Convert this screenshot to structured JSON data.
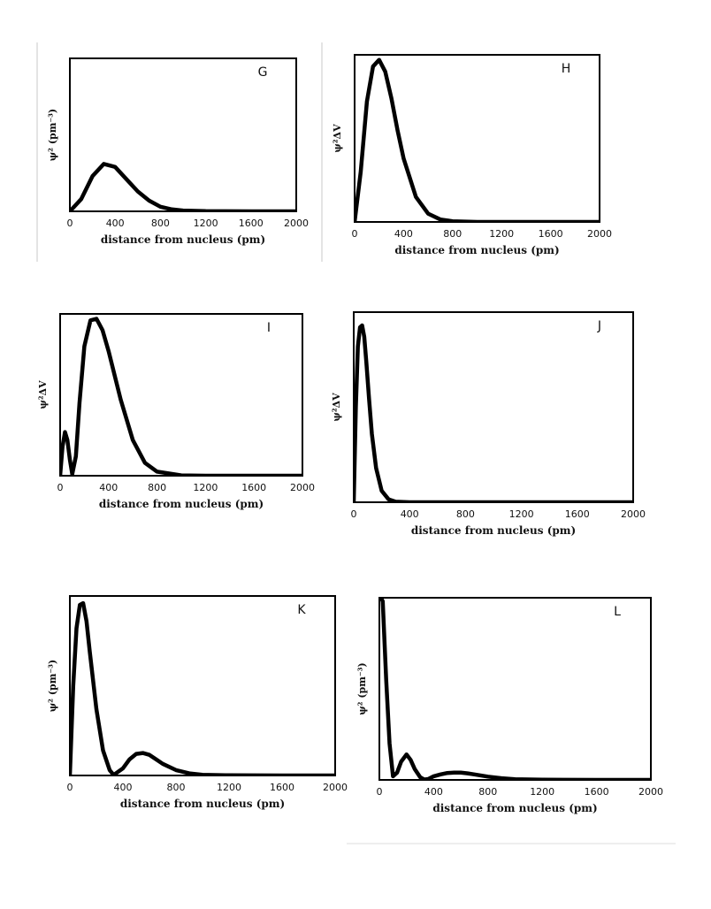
{
  "chart_data": [
    {
      "type": "line",
      "panel_label": "G",
      "xlabel": "distance from nucleus (pm)",
      "ylabel": "ψ² (pm⁻³)",
      "xlim": [
        0,
        2000
      ],
      "xticks": [
        "0",
        "400",
        "800",
        "1200",
        "1600",
        "2000"
      ],
      "ylim": [
        0,
        1
      ],
      "grid": false,
      "series": [
        {
          "x": [
            0,
            100,
            200,
            300,
            400,
            500,
            600,
            700,
            800,
            900,
            1000,
            1200,
            1600,
            2000
          ],
          "y": [
            0,
            0.08,
            0.23,
            0.31,
            0.29,
            0.21,
            0.13,
            0.07,
            0.03,
            0.013,
            0.005,
            0.001,
            0,
            0
          ]
        }
      ]
    },
    {
      "type": "line",
      "panel_label": "H",
      "xlabel": "distance from nucleus (pm)",
      "ylabel": "ψ²ΔV",
      "xlim": [
        0,
        2000
      ],
      "xticks": [
        "0",
        "400",
        "800",
        "1200",
        "1600",
        "2000"
      ],
      "ylim": [
        0,
        1
      ],
      "grid": false,
      "series": [
        {
          "x": [
            0,
            50,
            100,
            150,
            200,
            250,
            300,
            350,
            400,
            500,
            600,
            700,
            800,
            1000,
            1200,
            1600,
            2000
          ],
          "y": [
            0,
            0.3,
            0.72,
            0.93,
            0.97,
            0.9,
            0.74,
            0.55,
            0.38,
            0.15,
            0.05,
            0.015,
            0.004,
            0,
            0,
            0,
            0
          ]
        }
      ]
    },
    {
      "type": "line",
      "panel_label": "I",
      "xlabel": "distance from nucleus (pm)",
      "ylabel": "ψ²ΔV",
      "xlim": [
        0,
        2000
      ],
      "xticks": [
        "0",
        "400",
        "800",
        "1200",
        "1600",
        "2000"
      ],
      "ylim": [
        0,
        1
      ],
      "grid": false,
      "series": [
        {
          "x": [
            0,
            20,
            40,
            60,
            80,
            100,
            130,
            160,
            200,
            250,
            300,
            350,
            400,
            500,
            600,
            700,
            800,
            1000,
            1200,
            1600,
            2000
          ],
          "y": [
            0,
            0.18,
            0.27,
            0.22,
            0.1,
            0.01,
            0.12,
            0.45,
            0.8,
            0.96,
            0.97,
            0.9,
            0.77,
            0.47,
            0.22,
            0.08,
            0.025,
            0.002,
            0,
            0,
            0
          ]
        }
      ]
    },
    {
      "type": "line",
      "panel_label": "J",
      "xlabel": "distance from nucleus (pm)",
      "ylabel": "ψ²ΔV",
      "xlim": [
        0,
        2000
      ],
      "xticks": [
        "0",
        "400",
        "800",
        "1200",
        "1600",
        "2000"
      ],
      "ylim": [
        0,
        1
      ],
      "grid": false,
      "series": [
        {
          "x": [
            0,
            15,
            30,
            45,
            60,
            75,
            90,
            110,
            130,
            160,
            200,
            250,
            300,
            400,
            800,
            1200,
            1600,
            2000
          ],
          "y": [
            0,
            0.5,
            0.82,
            0.92,
            0.93,
            0.87,
            0.74,
            0.54,
            0.36,
            0.18,
            0.06,
            0.015,
            0.003,
            0,
            0,
            0,
            0,
            0
          ]
        }
      ]
    },
    {
      "type": "line",
      "panel_label": "K",
      "xlabel": "distance from nucleus (pm)",
      "ylabel": "ψ² (pm⁻³)",
      "xlim": [
        0,
        2000
      ],
      "xticks": [
        "0",
        "400",
        "800",
        "1200",
        "1600",
        "2000"
      ],
      "ylim": [
        0,
        1
      ],
      "grid": false,
      "series": [
        {
          "x": [
            0,
            25,
            50,
            75,
            100,
            125,
            150,
            200,
            250,
            300,
            330,
            400,
            450,
            500,
            550,
            600,
            650,
            700,
            800,
            900,
            1000,
            1200,
            1600,
            2000
          ],
          "y": [
            0,
            0.5,
            0.82,
            0.95,
            0.96,
            0.86,
            0.69,
            0.37,
            0.14,
            0.03,
            0.003,
            0.04,
            0.09,
            0.12,
            0.125,
            0.115,
            0.09,
            0.065,
            0.03,
            0.012,
            0.004,
            0.001,
            0,
            0
          ]
        }
      ]
    },
    {
      "type": "line",
      "panel_label": "L",
      "xlabel": "distance from nucleus (pm)",
      "ylabel": "ψ² (pm⁻³)",
      "xlim": [
        0,
        2000
      ],
      "xticks": [
        "0",
        "400",
        "800",
        "1200",
        "1600",
        "2000"
      ],
      "ylim": [
        0,
        1
      ],
      "grid": false,
      "series": [
        {
          "x": [
            0,
            25,
            50,
            75,
            100,
            130,
            160,
            200,
            230,
            260,
            300,
            330,
            360,
            400,
            450,
            500,
            550,
            600,
            650,
            700,
            800,
            900,
            1000,
            1200,
            1600,
            2000
          ],
          "y": [
            1.02,
            0.98,
            0.55,
            0.2,
            0.02,
            0.04,
            0.1,
            0.14,
            0.11,
            0.06,
            0.015,
            0.002,
            0.005,
            0.02,
            0.03,
            0.038,
            0.04,
            0.04,
            0.036,
            0.03,
            0.018,
            0.009,
            0.004,
            0.001,
            0,
            0
          ]
        }
      ]
    }
  ]
}
